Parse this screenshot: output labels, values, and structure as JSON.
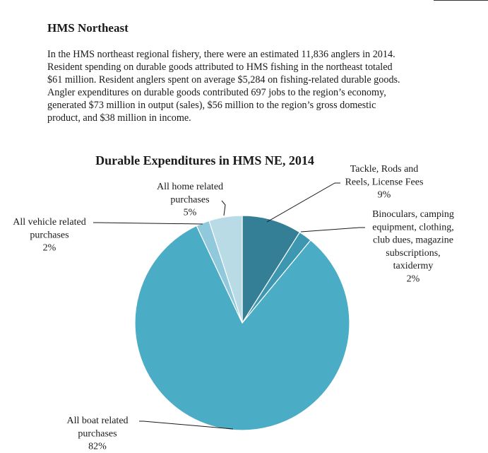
{
  "section": {
    "heading": "HMS Northeast",
    "paragraph_lines": [
      "In the HMS northeast regional fishery, there were an estimated 11,836 anglers in 2014.",
      "Resident spending on durable goods attributed to HMS fishing in the northeast totaled",
      "$61 million. Resident anglers spent on average $5,284 on fishing-related durable goods.",
      "Angler expenditures on durable goods contributed 697 jobs to the region’s economy,",
      "generated $73 million in output (sales), $56 million to the region’s gross domestic",
      "product, and $38 million in income."
    ]
  },
  "chart_data": {
    "type": "pie",
    "title": "Durable Expenditures in HMS NE, 2014",
    "start_angle_deg": 0,
    "direction": "clockwise",
    "slices": [
      {
        "label_lines": [
          "Tackle, Rods and",
          "Reels, License Fees",
          "9%"
        ],
        "value": 9,
        "color": "#357f96"
      },
      {
        "label_lines": [
          "Binoculars, camping",
          "equipment, clothing,",
          "club dues, magazine",
          "subscriptions,",
          "taxidermy",
          "2%"
        ],
        "value": 2,
        "color": "#3e97b1"
      },
      {
        "label_lines": [
          "All boat related",
          "purchases",
          "82%"
        ],
        "value": 82,
        "color": "#4bacc6"
      },
      {
        "label_lines": [
          "All vehicle related",
          "purchases",
          "2%"
        ],
        "value": 2,
        "color": "#91c9dc"
      },
      {
        "label_lines": [
          "All home related",
          "purchases",
          "5%"
        ],
        "value": 5,
        "color": "#b8dbe5"
      }
    ]
  }
}
